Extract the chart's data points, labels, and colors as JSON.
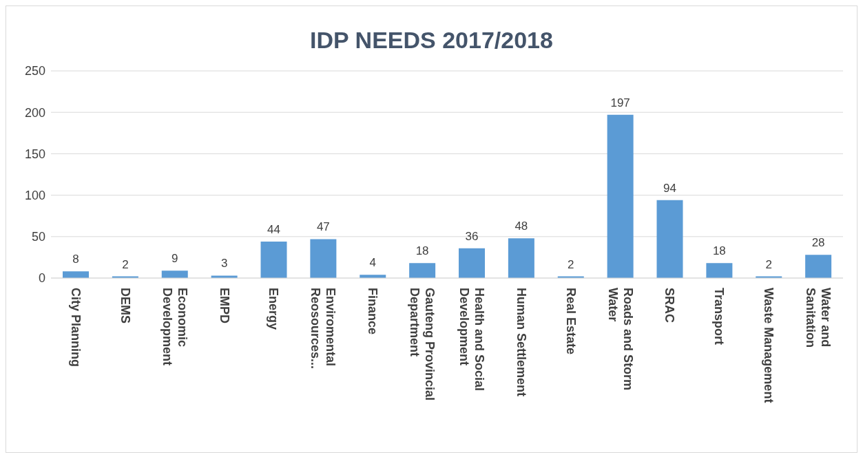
{
  "chart_data": {
    "type": "bar",
    "title": "IDP NEEDS 2017/2018",
    "categories": [
      "City Planning",
      "DEMS",
      "Economic Development",
      "EMPD",
      "Energy",
      "Enviromental Reosources...",
      "Finance",
      "Gauteng Provincial Department",
      "Health and Social Development",
      "Human Settlement",
      "Real Estate",
      "Roads and Storm Water",
      "SRAC",
      "Transport",
      "Waste Management",
      "Water and Sanitation"
    ],
    "values": [
      8,
      2,
      9,
      3,
      44,
      47,
      4,
      18,
      36,
      48,
      2,
      197,
      94,
      18,
      2,
      28
    ],
    "color": "#5b9bd5",
    "ylim": [
      0,
      250
    ],
    "yticks": [
      0,
      50,
      100,
      150,
      200,
      250
    ],
    "grid": "y",
    "data_labels": true
  }
}
